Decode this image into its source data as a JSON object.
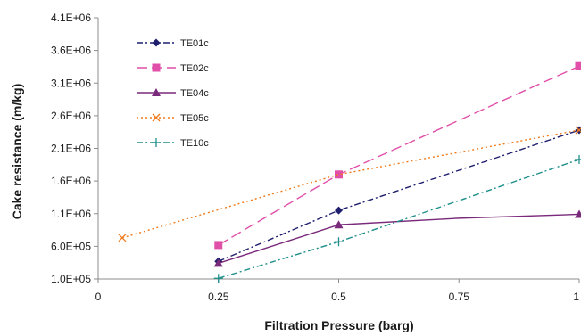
{
  "chart_data": {
    "type": "line",
    "title": "",
    "xlabel": "Filtration Pressure (barg)",
    "ylabel": "Cake resistance (m/kg)",
    "xlim": [
      0,
      1
    ],
    "ylim": [
      100000,
      4100000
    ],
    "x_ticks": [
      0,
      0.25,
      0.5,
      0.75,
      1
    ],
    "x_tick_labels": [
      "0",
      "0.25",
      "0.5",
      "0.75",
      "1"
    ],
    "y_ticks": [
      100000,
      600000,
      1100000,
      1600000,
      2100000,
      2600000,
      3100000,
      3600000,
      4100000
    ],
    "y_tick_labels": [
      "1.0E+05",
      "6.0E+05",
      "1.1E+06",
      "1.6E+06",
      "2.1E+06",
      "2.6E+06",
      "3.1E+06",
      "3.6E+06",
      "4.1E+06"
    ],
    "grid": false,
    "legend_position": "top-left",
    "series": [
      {
        "name": "TE01c",
        "color": "#1f1f6e",
        "dash": "dash-dot",
        "marker": "diamond",
        "x": [
          0.25,
          0.5,
          1
        ],
        "y": [
          370000,
          1150000,
          2380000
        ]
      },
      {
        "name": "TE02c",
        "color": "#e04fa8",
        "dash": "long-dash",
        "marker": "square",
        "x": [
          0.25,
          0.5,
          1
        ],
        "y": [
          620000,
          1700000,
          3360000
        ]
      },
      {
        "name": "TE04c",
        "color": "#7a2a7a",
        "dash": "solid",
        "marker": "triangle",
        "x": [
          0.25,
          0.5,
          0.75,
          1
        ],
        "y": [
          340000,
          930000,
          1030000,
          1090000
        ],
        "marker_x": [
          0.25,
          0.5,
          1
        ],
        "marker_y": [
          340000,
          930000,
          1090000
        ]
      },
      {
        "name": "TE05c",
        "color": "#f07a1a",
        "dash": "dotted",
        "marker": "x",
        "x": [
          0.05,
          0.5,
          1
        ],
        "y": [
          730000,
          1700000,
          2380000
        ],
        "marker_x": [
          0.05,
          1
        ],
        "marker_y": [
          730000,
          2380000
        ]
      },
      {
        "name": "TE10c",
        "color": "#1e8f8a",
        "dash": "dash-dot",
        "marker": "plus",
        "x": [
          0.25,
          0.5,
          1
        ],
        "y": [
          110000,
          670000,
          1930000
        ]
      }
    ]
  }
}
